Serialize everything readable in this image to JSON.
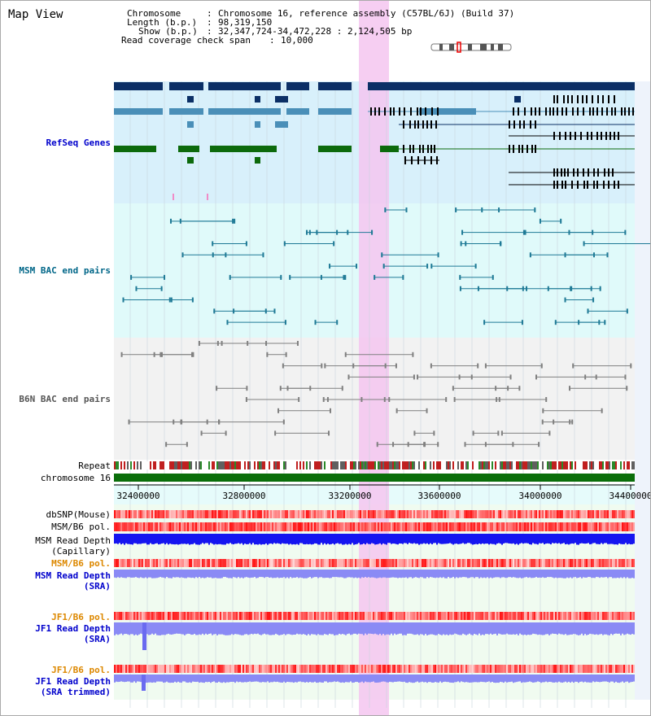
{
  "view": {
    "title": "Map View"
  },
  "info": {
    "chromosome_key": "Chromosome",
    "chromosome_val": "Chromosome 16, reference assembly (C57BL/6J) (Build 37)",
    "length_key": "Length (b.p.)",
    "length_val": "98,319,150",
    "show_key": "Show (b.p.)",
    "show_val": "32,347,724-34,472,228 : 2,124,505 bp",
    "read_key": "Read coverage check span",
    "read_val": "10,000"
  },
  "tracks": {
    "refseq": "RefSeq Genes",
    "msm_bac": "MSM BAC end pairs",
    "b6n_bac": "B6N BAC end pairs",
    "repeat": "Repeat",
    "chromosome": "chromosome 16",
    "dbsnp": "dbSNP(Mouse)",
    "msm_b6_pol_1": "MSM/B6 pol.",
    "msm_read_depth_cap_1": "MSM Read Depth",
    "msm_read_depth_cap_2": "(Capillary)",
    "msm_b6_pol_2": "MSM/B6 pol.",
    "msm_read_depth_sra_1": "MSM Read Depth",
    "msm_read_depth_sra_2": "(SRA)",
    "jf1_b6_pol_1": "JF1/B6 pol.",
    "jf1_read_depth_1": "JF1 Read Depth",
    "jf1_read_depth_2": "(SRA)",
    "jf1_b6_pol_2": "JF1/B6 pol.",
    "jf1_read_depth_trim_1": "JF1 Read Depth",
    "jf1_read_depth_trim_2": "(SRA trimmed)"
  },
  "axis": {
    "ticks": [
      "32400000",
      "32800000",
      "33200000",
      "33600000",
      "34000000",
      "34400000"
    ]
  },
  "colors": {
    "refseq_bg": "#d8f0fb",
    "msm_bg": "#e0fafa",
    "b6n_bg": "#f2f2f2",
    "highlight": "#f5c6f0",
    "gene_dark": "#0b2f66",
    "gene_mid": "#4a8fb8",
    "gene_green": "#0c6a0c",
    "chrom_green": "#0a6e0a",
    "msm_line": "#1f7a96",
    "b6n_line": "#808080",
    "depth_blue": "#1515f0",
    "depth_light": "#8a8af5",
    "label_dark": "#000000",
    "label_blue": "#0000cc",
    "label_orange": "#dd8800",
    "label_teal": "#006688"
  }
}
